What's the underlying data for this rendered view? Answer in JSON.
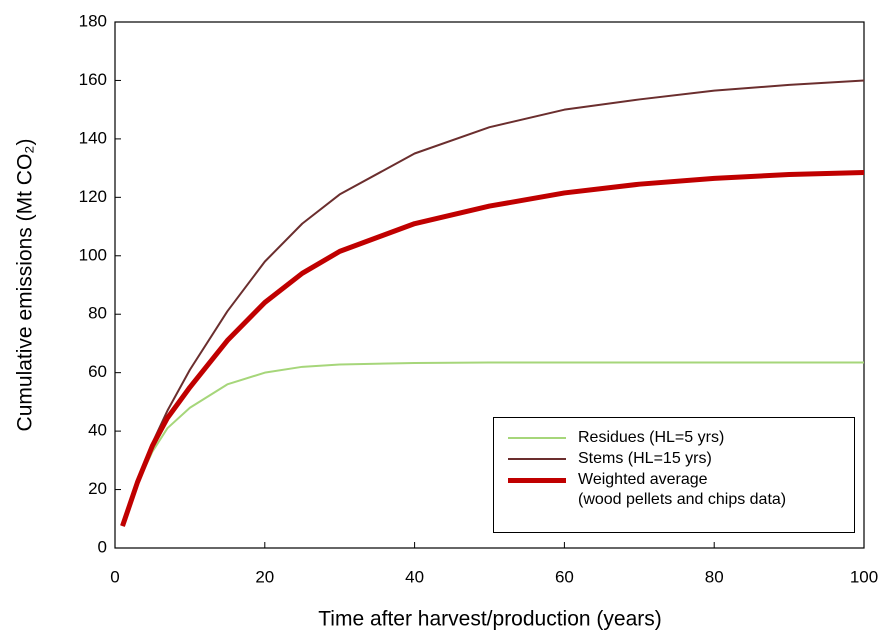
{
  "chart_data": {
    "type": "line",
    "xlabel": "Time after harvest/production (years)",
    "ylabel": "Cumulative emissions (Mt CO₂)",
    "x": [
      1,
      3,
      5,
      7,
      10,
      15,
      20,
      25,
      30,
      40,
      50,
      60,
      70,
      80,
      90,
      100
    ],
    "series": [
      {
        "name": "Residues (HL=5 yrs)",
        "color": "#a6d67a",
        "width": 2,
        "values": [
          7.5,
          22,
          33,
          41,
          48,
          56,
          60,
          62,
          62.8,
          63.3,
          63.5,
          63.5,
          63.5,
          63.5,
          63.5,
          63.5
        ]
      },
      {
        "name": "Stems (HL=15 yrs)",
        "color": "#6b2e2e",
        "width": 2,
        "values": [
          7.5,
          23,
          36,
          47,
          61,
          81,
          98,
          111,
          121,
          135,
          144,
          150,
          153.5,
          156.5,
          158.5,
          160
        ]
      },
      {
        "name": "Weighted average\n(wood pellets and chips data)",
        "color": "#c00000",
        "width": 5,
        "values": [
          7.5,
          22.5,
          35,
          44.5,
          55,
          71,
          84,
          94,
          101.5,
          111,
          117,
          121.5,
          124.5,
          126.5,
          127.8,
          128.5
        ]
      }
    ],
    "xlim": [
      0,
      100
    ],
    "xticks": [
      0,
      20,
      40,
      60,
      80,
      100
    ],
    "ylim": [
      0,
      180
    ],
    "yticks": [
      0,
      20,
      40,
      60,
      80,
      100,
      120,
      140,
      160,
      180
    ],
    "grid": false,
    "legend": "lower right"
  }
}
